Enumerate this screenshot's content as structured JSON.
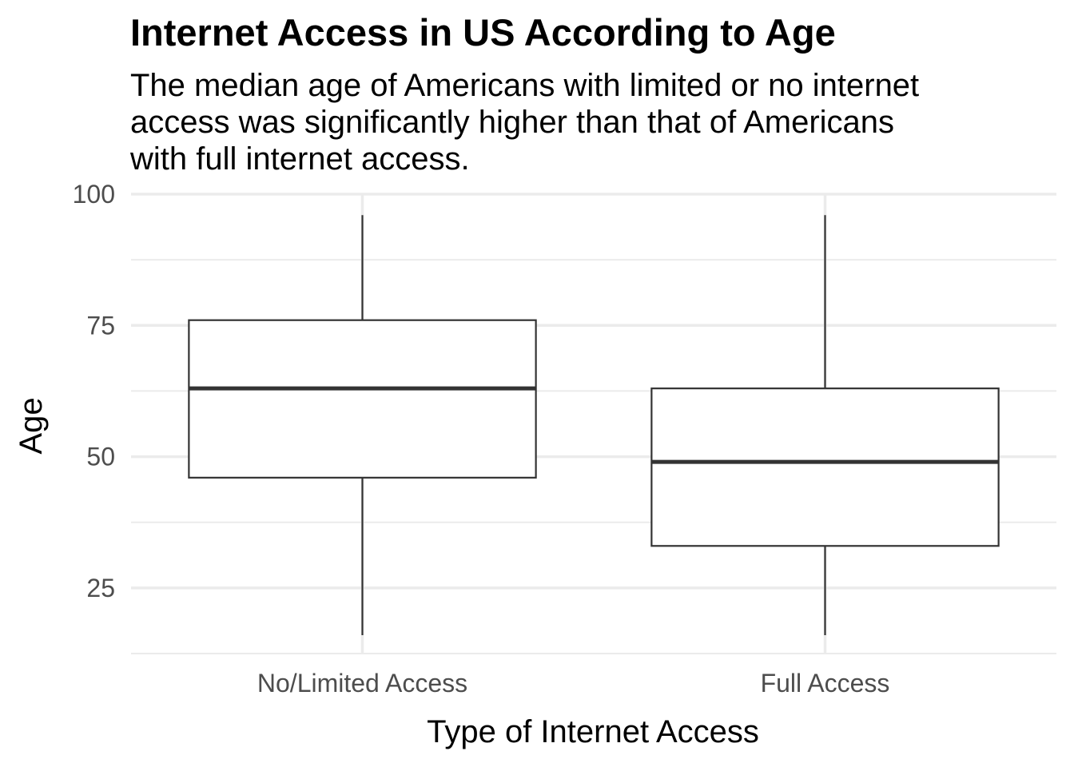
{
  "chart_data": {
    "type": "boxplot",
    "title": "Internet Access in US According to Age",
    "subtitle_lines": [
      "The median age of Americans with limited or no internet",
      "access was significantly higher than that of Americans",
      "with full internet access."
    ],
    "xlabel": "Type of Internet Access",
    "ylabel": "Age",
    "categories": [
      "No/Limited Access",
      "Full Access"
    ],
    "boxes": [
      {
        "category": "No/Limited Access",
        "whisker_low": 16,
        "q1": 46,
        "median": 63,
        "q3": 76,
        "whisker_high": 96
      },
      {
        "category": "Full Access",
        "whisker_low": 16,
        "q1": 33,
        "median": 49,
        "q3": 63,
        "whisker_high": 96
      }
    ],
    "ylim": [
      12.5,
      100
    ],
    "yticks": [
      25,
      50,
      75,
      100
    ],
    "y_minor_ticks": [
      37.5,
      62.5,
      87.5
    ],
    "grid": true,
    "legend": "none",
    "colors": {
      "box_fill": "#ffffff",
      "box_stroke": "#333333",
      "grid": "#ebebeb",
      "tick_label": "#4d4d4d",
      "axis_title": "#000000"
    }
  }
}
